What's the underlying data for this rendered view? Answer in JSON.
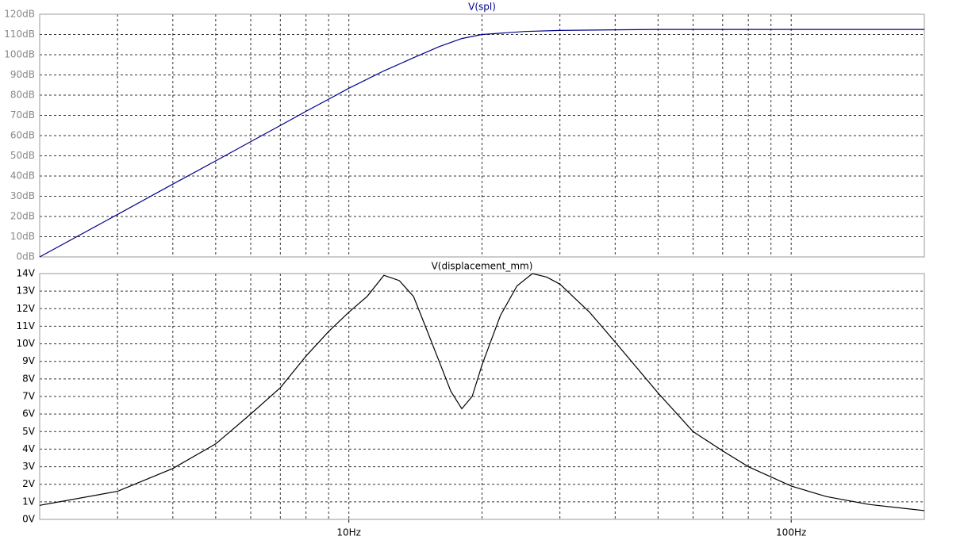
{
  "chart_data": [
    {
      "type": "line",
      "log_x": true,
      "grid": true,
      "x": [
        2,
        3,
        4,
        5,
        6,
        7,
        8,
        9,
        10,
        12,
        14,
        16,
        18,
        20,
        25,
        30,
        40,
        50,
        70,
        100,
        150,
        200
      ],
      "series": [
        {
          "name": "V(spl)",
          "color": "#00008b",
          "values": [
            0,
            21,
            36,
            47.5,
            57,
            65,
            72,
            78,
            83.4,
            92,
            98.5,
            104,
            108,
            110,
            111.5,
            112,
            112.3,
            112.5,
            112.5,
            112.5,
            112.5,
            112.5
          ]
        }
      ],
      "xlim": [
        2,
        200
      ],
      "x_grid": [
        2,
        3,
        4,
        5,
        6,
        7,
        8,
        9,
        10,
        20,
        30,
        40,
        50,
        60,
        70,
        80,
        90,
        100,
        200
      ],
      "ylim": [
        0,
        120
      ],
      "yticks": [
        {
          "value": 0,
          "label": "0dB"
        },
        {
          "value": 10,
          "label": "10dB"
        },
        {
          "value": 20,
          "label": "20dB"
        },
        {
          "value": 30,
          "label": "30dB"
        },
        {
          "value": 40,
          "label": "40dB"
        },
        {
          "value": 50,
          "label": "50dB"
        },
        {
          "value": 60,
          "label": "60dB"
        },
        {
          "value": 70,
          "label": "70dB"
        },
        {
          "value": 80,
          "label": "80dB"
        },
        {
          "value": 90,
          "label": "90dB"
        },
        {
          "value": 100,
          "label": "100dB"
        },
        {
          "value": 110,
          "label": "110dB"
        },
        {
          "value": 120,
          "label": "120dB"
        }
      ]
    },
    {
      "type": "line",
      "log_x": true,
      "grid": true,
      "x": [
        2,
        3,
        4,
        5,
        6,
        7,
        8,
        9,
        10,
        11,
        12,
        13,
        14,
        15,
        16,
        17,
        18,
        19,
        20,
        22,
        24,
        26,
        28,
        30,
        35,
        40,
        50,
        60,
        70,
        80,
        100,
        120,
        150,
        200
      ],
      "series": [
        {
          "name": "V(displacement_mm)",
          "color": "#000000",
          "values": [
            0.8,
            1.6,
            2.9,
            4.3,
            6.0,
            7.5,
            9.3,
            10.7,
            11.8,
            12.7,
            13.9,
            13.6,
            12.7,
            10.8,
            9.0,
            7.3,
            6.3,
            7.0,
            8.8,
            11.6,
            13.3,
            14.0,
            13.8,
            13.4,
            11.8,
            10.1,
            7.2,
            5.0,
            3.9,
            3.0,
            1.9,
            1.3,
            0.85,
            0.5
          ]
        }
      ],
      "xlim": [
        2,
        200
      ],
      "x_grid": [
        2,
        3,
        4,
        5,
        6,
        7,
        8,
        9,
        10,
        20,
        30,
        40,
        50,
        60,
        70,
        80,
        90,
        100,
        200
      ],
      "xticks": [
        {
          "value": 10,
          "label": "10Hz"
        },
        {
          "value": 100,
          "label": "100Hz"
        }
      ],
      "ylim": [
        0,
        14
      ],
      "yticks": [
        {
          "value": 0,
          "label": "0V"
        },
        {
          "value": 1,
          "label": "1V"
        },
        {
          "value": 2,
          "label": "2V"
        },
        {
          "value": 3,
          "label": "3V"
        },
        {
          "value": 4,
          "label": "4V"
        },
        {
          "value": 5,
          "label": "5V"
        },
        {
          "value": 6,
          "label": "6V"
        },
        {
          "value": 7,
          "label": "7V"
        },
        {
          "value": 8,
          "label": "8V"
        },
        {
          "value": 9,
          "label": "9V"
        },
        {
          "value": 10,
          "label": "10V"
        },
        {
          "value": 11,
          "label": "11V"
        },
        {
          "value": 12,
          "label": "12V"
        },
        {
          "value": 13,
          "label": "13V"
        },
        {
          "value": 14,
          "label": "14V"
        }
      ]
    }
  ]
}
